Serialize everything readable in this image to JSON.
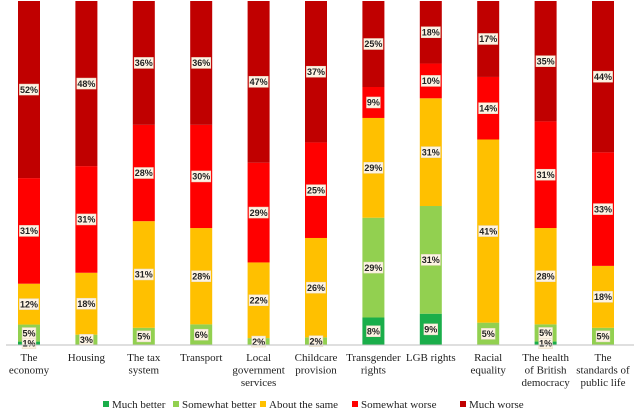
{
  "chart_data": {
    "type": "bar",
    "stacked": true,
    "normalized": true,
    "categories": [
      "The economy",
      "Housing",
      "The tax system",
      "Transport",
      "Local government services",
      "Childcare provision",
      "Transgender rights",
      "LGB rights",
      "Racial equality",
      "The health of British democracy",
      "The standards of public life"
    ],
    "category_label_lines": [
      [
        "The",
        "economy"
      ],
      [
        "Housing"
      ],
      [
        "The tax",
        "system"
      ],
      [
        "Transport"
      ],
      [
        "Local",
        "government",
        "services"
      ],
      [
        "Childcare",
        "provision"
      ],
      [
        "Transgender",
        "rights"
      ],
      [
        "LGB rights"
      ],
      [
        "Racial",
        "equality"
      ],
      [
        "The health",
        "of British",
        "democracy"
      ],
      [
        "The",
        "standards of",
        "public life"
      ]
    ],
    "series": [
      {
        "name": "Much better",
        "color": "#1aae4a",
        "values": [
          1,
          0,
          0,
          0,
          0,
          0,
          8,
          9,
          0,
          1,
          0
        ],
        "labels": [
          "1%",
          "",
          "",
          "",
          "",
          "",
          "8%",
          "9%",
          "",
          "1%",
          ""
        ]
      },
      {
        "name": "Somewhat better",
        "color": "#92d050",
        "values": [
          5,
          3,
          5,
          6,
          2,
          2,
          29,
          31,
          5,
          5,
          5
        ],
        "labels": [
          "5%",
          "3%",
          "5%",
          "6%",
          "2%",
          "2%",
          "29%",
          "31%",
          "5%",
          "5%",
          "5%"
        ]
      },
      {
        "name": "About the same",
        "color": "#ffc000",
        "values": [
          12,
          18,
          31,
          28,
          22,
          26,
          29,
          31,
          41,
          28,
          18
        ],
        "labels": [
          "12%",
          "18%",
          "31%",
          "28%",
          "22%",
          "26%",
          "29%",
          "31%",
          "41%",
          "28%",
          "18%"
        ]
      },
      {
        "name": "Somewhat worse",
        "color": "#ff0000",
        "values": [
          31,
          31,
          28,
          30,
          29,
          25,
          9,
          10,
          14,
          31,
          33
        ],
        "labels": [
          "31%",
          "31%",
          "28%",
          "30%",
          "29%",
          "25%",
          "9%",
          "10%",
          "14%",
          "31%",
          "33%"
        ]
      },
      {
        "name": "Much worse",
        "color": "#c00000",
        "values": [
          52,
          48,
          36,
          36,
          47,
          37,
          25,
          18,
          17,
          35,
          44
        ],
        "labels": [
          "52%",
          "48%",
          "36%",
          "36%",
          "47%",
          "37%",
          "25%",
          "18%",
          "17%",
          "35%",
          "44%"
        ]
      }
    ],
    "title": "",
    "xlabel": "",
    "ylabel": "",
    "ylim": [
      0,
      100
    ],
    "grid": false,
    "legend_position": "bottom"
  }
}
